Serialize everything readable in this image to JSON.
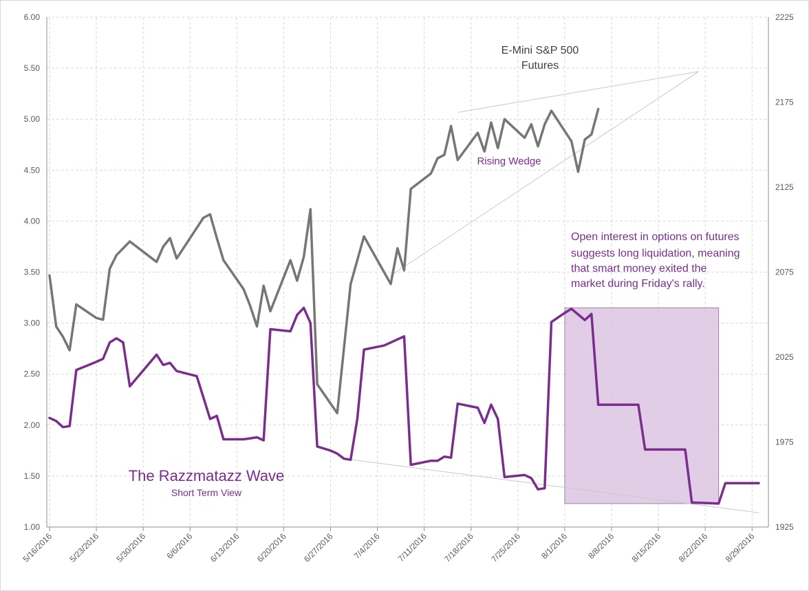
{
  "chart_data": {
    "type": "line",
    "x_tick_labels": [
      "5/16/2016",
      "5/23/2016",
      "5/30/2016",
      "6/6/2016",
      "6/13/2016",
      "6/20/2016",
      "6/27/2016",
      "7/4/2016",
      "7/11/2016",
      "7/18/2016",
      "7/25/2016",
      "8/1/2016",
      "8/8/2016",
      "8/15/2016",
      "8/22/2016",
      "8/29/2016"
    ],
    "x_range": [
      "5/16/2016",
      "8/30/2016"
    ],
    "y_left": {
      "range": [
        1.0,
        6.0
      ],
      "ticks": [
        "1.00",
        "1.50",
        "2.00",
        "2.50",
        "3.00",
        "3.50",
        "4.00",
        "4.50",
        "5.00",
        "5.50",
        "6.00"
      ]
    },
    "y_right": {
      "range": [
        1925,
        2225
      ],
      "ticks": [
        "1925",
        "1975",
        "2025",
        "2075",
        "2125",
        "2175",
        "2225"
      ]
    },
    "grid": true,
    "series": [
      {
        "axis": "left",
        "color": "#7b2d8e",
        "points": [
          [
            "5/16/2016",
            2.07
          ],
          [
            "5/17/2016",
            2.04
          ],
          [
            "5/18/2016",
            1.98
          ],
          [
            "5/19/2016",
            1.99
          ],
          [
            "5/20/2016",
            2.54
          ],
          [
            "5/23/2016",
            2.62
          ],
          [
            "5/24/2016",
            2.65
          ],
          [
            "5/25/2016",
            2.81
          ],
          [
            "5/26/2016",
            2.85
          ],
          [
            "5/27/2016",
            2.81
          ],
          [
            "5/28/2016",
            2.38
          ],
          [
            "6/1/2016",
            2.69
          ],
          [
            "6/2/2016",
            2.59
          ],
          [
            "6/3/2016",
            2.61
          ],
          [
            "6/4/2016",
            2.53
          ],
          [
            "6/7/2016",
            2.48
          ],
          [
            "6/9/2016",
            2.06
          ],
          [
            "6/10/2016",
            2.09
          ],
          [
            "6/11/2016",
            1.86
          ],
          [
            "6/14/2016",
            1.86
          ],
          [
            "6/15/2016",
            1.87
          ],
          [
            "6/16/2016",
            1.88
          ],
          [
            "6/17/2016",
            1.85
          ],
          [
            "6/18/2016",
            2.94
          ],
          [
            "6/21/2016",
            2.92
          ],
          [
            "6/22/2016",
            3.08
          ],
          [
            "6/23/2016",
            3.15
          ],
          [
            "6/24/2016",
            3.0
          ],
          [
            "6/25/2016",
            1.79
          ],
          [
            "6/27/2016",
            1.75
          ],
          [
            "6/28/2016",
            1.72
          ],
          [
            "6/29/2016",
            1.67
          ],
          [
            "6/30/2016",
            1.66
          ],
          [
            "7/1/2016",
            2.06
          ],
          [
            "7/2/2016",
            2.74
          ],
          [
            "7/5/2016",
            2.78
          ],
          [
            "7/6/2016",
            2.81
          ],
          [
            "7/8/2016",
            2.87
          ],
          [
            "7/9/2016",
            1.61
          ],
          [
            "7/12/2016",
            1.65
          ],
          [
            "7/13/2016",
            1.65
          ],
          [
            "7/14/2016",
            1.69
          ],
          [
            "7/15/2016",
            1.68
          ],
          [
            "7/16/2016",
            2.21
          ],
          [
            "7/19/2016",
            2.17
          ],
          [
            "7/20/2016",
            2.02
          ],
          [
            "7/21/2016",
            2.2
          ],
          [
            "7/22/2016",
            2.06
          ],
          [
            "7/23/2016",
            1.49
          ],
          [
            "7/26/2016",
            1.51
          ],
          [
            "7/27/2016",
            1.48
          ],
          [
            "7/28/2016",
            1.37
          ],
          [
            "7/29/2016",
            1.38
          ],
          [
            "7/30/2016",
            3.01
          ],
          [
            "8/1/2016",
            3.1
          ],
          [
            "8/2/2016",
            3.14
          ],
          [
            "8/4/2016",
            3.03
          ],
          [
            "8/5/2016",
            3.09
          ],
          [
            "8/6/2016",
            2.2
          ],
          [
            "8/10/2016",
            2.2
          ],
          [
            "8/11/2016",
            2.2
          ],
          [
            "8/12/2016",
            2.2
          ],
          [
            "8/13/2016",
            1.76
          ],
          [
            "8/19/2016",
            1.76
          ],
          [
            "8/20/2016",
            1.24
          ],
          [
            "8/24/2016",
            1.23
          ],
          [
            "8/25/2016",
            1.43
          ],
          [
            "8/29/2016",
            1.43
          ],
          [
            "8/30/2016",
            1.43
          ]
        ]
      },
      {
        "axis": "right",
        "color": "#767676",
        "points": [
          [
            "5/16/2016",
            2073
          ],
          [
            "5/17/2016",
            2043
          ],
          [
            "5/18/2016",
            2037
          ],
          [
            "5/19/2016",
            2029
          ],
          [
            "5/20/2016",
            2056
          ],
          [
            "5/23/2016",
            2048
          ],
          [
            "5/24/2016",
            2047
          ],
          [
            "5/25/2016",
            2077
          ],
          [
            "5/26/2016",
            2085
          ],
          [
            "5/27/2016",
            2089
          ],
          [
            "5/28/2016",
            2093
          ],
          [
            "6/1/2016",
            2081
          ],
          [
            "6/2/2016",
            2090
          ],
          [
            "6/3/2016",
            2095
          ],
          [
            "6/4/2016",
            2083
          ],
          [
            "6/7/2016",
            2101
          ],
          [
            "6/8/2016",
            2107
          ],
          [
            "6/9/2016",
            2109
          ],
          [
            "6/10/2016",
            2095
          ],
          [
            "6/11/2016",
            2082
          ],
          [
            "6/14/2016",
            2065
          ],
          [
            "6/15/2016",
            2055
          ],
          [
            "6/16/2016",
            2043
          ],
          [
            "6/17/2016",
            2067
          ],
          [
            "6/18/2016",
            2052
          ],
          [
            "6/21/2016",
            2082
          ],
          [
            "6/22/2016",
            2070
          ],
          [
            "6/23/2016",
            2084
          ],
          [
            "6/24/2016",
            2112
          ],
          [
            "6/25/2016",
            2009
          ],
          [
            "6/28/2016",
            1992
          ],
          [
            "6/30/2016",
            2068
          ],
          [
            "7/1/2016",
            2082
          ],
          [
            "7/2/2016",
            2096
          ],
          [
            "7/6/2016",
            2068
          ],
          [
            "7/7/2016",
            2089
          ],
          [
            "7/8/2016",
            2076
          ],
          [
            "7/9/2016",
            2124
          ],
          [
            "7/12/2016",
            2133
          ],
          [
            "7/13/2016",
            2142
          ],
          [
            "7/14/2016",
            2144
          ],
          [
            "7/15/2016",
            2161
          ],
          [
            "7/16/2016",
            2141
          ],
          [
            "7/19/2016",
            2157
          ],
          [
            "7/20/2016",
            2146
          ],
          [
            "7/21/2016",
            2163
          ],
          [
            "7/22/2016",
            2148
          ],
          [
            "7/23/2016",
            2165
          ],
          [
            "7/26/2016",
            2154
          ],
          [
            "7/27/2016",
            2162
          ],
          [
            "7/28/2016",
            2149
          ],
          [
            "7/29/2016",
            2162
          ],
          [
            "7/30/2016",
            2170
          ],
          [
            "8/2/2016",
            2152
          ],
          [
            "8/3/2016",
            2134
          ],
          [
            "8/4/2016",
            2153
          ],
          [
            "8/5/2016",
            2156
          ],
          [
            "8/6/2016",
            2171
          ]
        ]
      }
    ],
    "annotations": {
      "futures_label": [
        "E-Mini S&P 500",
        "Futures"
      ],
      "wedge_label": "Rising Wedge",
      "wave_title": "The Razzmatazz Wave",
      "wave_subtitle": "Short Term View",
      "note_lines": [
        "Open interest in options on futures",
        "suggests long liquidation, meaning",
        "that smart money exited the",
        "market during Friday's rally."
      ]
    },
    "wedge_lines": [
      {
        "axis": "right",
        "from": [
          "7/6/2016",
          2073
        ],
        "to": [
          "8/21/2016",
          2193
        ]
      },
      {
        "axis": "right",
        "from": [
          "7/16/2016",
          2169
        ],
        "to": [
          "8/21/2016",
          2193
        ]
      },
      {
        "axis": "left",
        "from": [
          "6/29/2016",
          1.67
        ],
        "to": [
          "8/30/2016",
          1.14
        ]
      }
    ],
    "highlight_box": {
      "x": [
        "8/1/2016",
        "8/24/2016"
      ],
      "y_left": [
        1.23,
        3.15
      ],
      "color": "#9c5aa8"
    },
    "colors": {
      "wave": "#7b2d8e",
      "futures": "#767676",
      "grid": "#d9d9d9",
      "box_fill": "#dcc4e0"
    }
  }
}
